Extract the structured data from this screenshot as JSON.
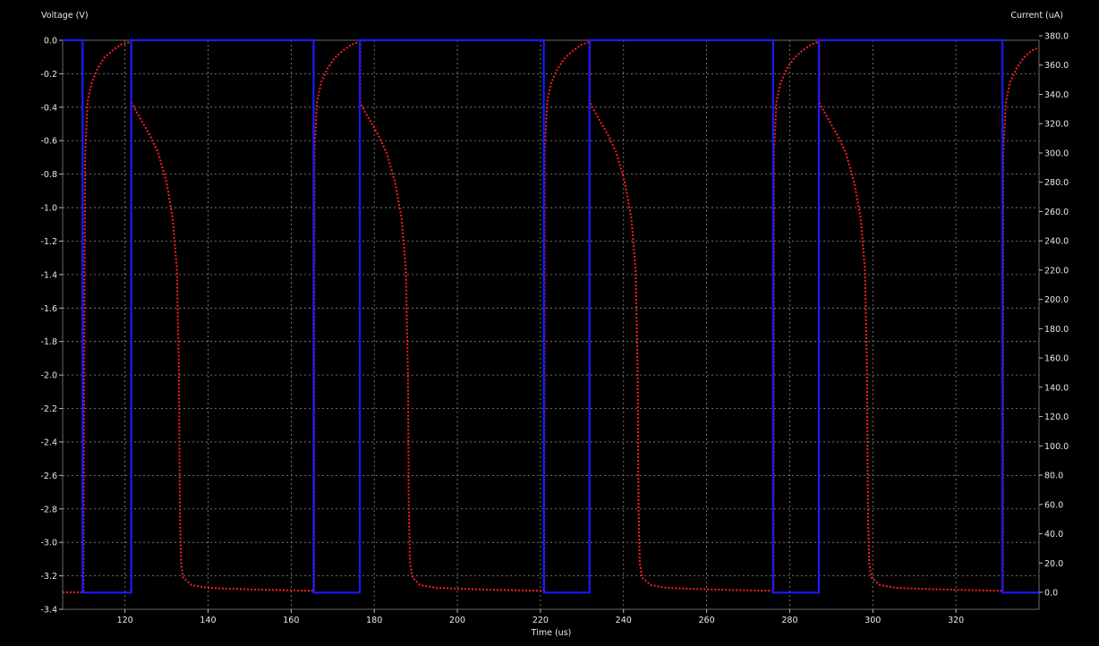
{
  "chart_data": {
    "type": "line",
    "x_axis": {
      "label": "Time (us)",
      "range": [
        105,
        340
      ],
      "ticks": [
        120,
        140,
        160,
        180,
        200,
        220,
        240,
        260,
        280,
        300,
        320
      ],
      "tick_labels": [
        "120",
        "140",
        "160",
        "180",
        "200",
        "220",
        "240",
        "260",
        "280",
        "300",
        "320"
      ]
    },
    "y_left_axis": {
      "label": "Voltage (V)",
      "range": [
        -3.4,
        0.0
      ],
      "ticks": [
        0.0,
        -0.2,
        -0.4,
        -0.6,
        -0.8,
        -1.0,
        -1.2,
        -1.4,
        -1.6,
        -1.8,
        -2.0,
        -2.2,
        -2.4,
        -2.6,
        -2.8,
        -3.0,
        -3.2,
        -3.4
      ],
      "tick_labels": [
        "0.0",
        "-0.2",
        "-0.4",
        "-0.6",
        "-0.8",
        "-1.0",
        "-1.2",
        "-1.4",
        "-1.6",
        "-1.8",
        "-2.0",
        "-2.2",
        "-2.4",
        "-2.6",
        "-2.8",
        "-3.0",
        "-3.2",
        "-3.4"
      ]
    },
    "y_right_axis": {
      "label": "Current (uA)",
      "range": [
        -10,
        380
      ],
      "ticks": [
        380,
        360,
        340,
        320,
        300,
        280,
        260,
        240,
        220,
        200,
        180,
        160,
        140,
        120,
        100,
        80,
        60,
        40,
        20,
        0
      ],
      "tick_labels": [
        "380.0",
        "360.0",
        "340.0",
        "320.0",
        "300.0",
        "280.0",
        "260.0",
        "240.0",
        "220.0",
        "200.0",
        "180.0",
        "160.0",
        "140.0",
        "120.0",
        "100.0",
        "80.0",
        "60.0",
        "40.0",
        "20.0",
        "0.0"
      ]
    },
    "grid": true,
    "series": [
      {
        "name": "Voltage",
        "axis": "left",
        "style": "solid",
        "color": "#1a1aff",
        "points": [
          [
            105,
            0
          ],
          [
            109.8,
            0
          ],
          [
            109.8,
            -3.3
          ],
          [
            121.5,
            -3.3
          ],
          [
            121.5,
            0
          ],
          [
            165.4,
            0
          ],
          [
            165.4,
            -3.3
          ],
          [
            176.5,
            -3.3
          ],
          [
            176.5,
            0
          ],
          [
            220.8,
            0
          ],
          [
            220.8,
            -3.3
          ],
          [
            231.8,
            -3.3
          ],
          [
            231.8,
            0
          ],
          [
            276,
            0
          ],
          [
            276,
            -3.3
          ],
          [
            287,
            -3.3
          ],
          [
            287,
            0
          ],
          [
            331.2,
            0
          ],
          [
            331.2,
            -3.3
          ],
          [
            340,
            -3.3
          ]
        ]
      },
      {
        "name": "Current",
        "axis": "right",
        "style": "dotted",
        "color": "#ff2020",
        "points": [
          [
            105,
            0
          ],
          [
            110,
            0
          ],
          [
            110.4,
            300
          ],
          [
            111,
            335
          ],
          [
            112,
            348
          ],
          [
            113.5,
            358
          ],
          [
            115,
            365
          ],
          [
            117,
            370
          ],
          [
            119,
            374
          ],
          [
            121.5,
            376
          ],
          [
            121.5,
            335
          ],
          [
            122,
            332
          ],
          [
            124,
            322
          ],
          [
            126,
            312
          ],
          [
            128,
            300
          ],
          [
            130,
            280
          ],
          [
            131.5,
            255
          ],
          [
            132.5,
            220
          ],
          [
            133,
            150
          ],
          [
            133.2,
            60
          ],
          [
            133.5,
            20
          ],
          [
            134,
            10
          ],
          [
            136,
            5
          ],
          [
            140,
            3
          ],
          [
            150,
            2
          ],
          [
            165.5,
            1
          ],
          [
            165.6,
            300
          ],
          [
            166.2,
            335
          ],
          [
            167.2,
            348
          ],
          [
            168.8,
            358
          ],
          [
            170.5,
            365
          ],
          [
            172.5,
            370
          ],
          [
            174.5,
            374
          ],
          [
            176.6,
            376
          ],
          [
            176.6,
            335
          ],
          [
            177,
            332
          ],
          [
            179,
            322
          ],
          [
            181,
            312
          ],
          [
            183,
            300
          ],
          [
            185,
            280
          ],
          [
            186.6,
            255
          ],
          [
            187.6,
            220
          ],
          [
            188.1,
            150
          ],
          [
            188.3,
            60
          ],
          [
            188.6,
            20
          ],
          [
            189.2,
            10
          ],
          [
            191,
            5
          ],
          [
            195,
            3
          ],
          [
            205,
            2
          ],
          [
            220.9,
            1
          ],
          [
            221,
            300
          ],
          [
            221.6,
            335
          ],
          [
            222.6,
            348
          ],
          [
            224.2,
            358
          ],
          [
            225.9,
            365
          ],
          [
            227.9,
            370
          ],
          [
            229.9,
            374
          ],
          [
            231.9,
            376
          ],
          [
            231.9,
            335
          ],
          [
            232.3,
            332
          ],
          [
            234.3,
            322
          ],
          [
            236.3,
            312
          ],
          [
            238.3,
            300
          ],
          [
            240.3,
            280
          ],
          [
            241.9,
            255
          ],
          [
            242.9,
            220
          ],
          [
            243.4,
            150
          ],
          [
            243.6,
            60
          ],
          [
            243.9,
            20
          ],
          [
            244.5,
            10
          ],
          [
            246.5,
            5
          ],
          [
            250.5,
            3
          ],
          [
            260.5,
            2
          ],
          [
            276.1,
            1
          ],
          [
            276.2,
            300
          ],
          [
            276.8,
            335
          ],
          [
            277.8,
            348
          ],
          [
            279.4,
            358
          ],
          [
            281.1,
            365
          ],
          [
            283.1,
            370
          ],
          [
            285.1,
            374
          ],
          [
            287.1,
            376
          ],
          [
            287.1,
            335
          ],
          [
            287.5,
            332
          ],
          [
            289.5,
            322
          ],
          [
            291.5,
            312
          ],
          [
            293.5,
            300
          ],
          [
            295.5,
            280
          ],
          [
            297.1,
            255
          ],
          [
            298.1,
            220
          ],
          [
            298.6,
            150
          ],
          [
            298.8,
            60
          ],
          [
            299.1,
            20
          ],
          [
            299.7,
            10
          ],
          [
            301.7,
            5
          ],
          [
            305.7,
            3
          ],
          [
            315.7,
            2
          ],
          [
            331.3,
            1
          ],
          [
            331.4,
            300
          ],
          [
            332,
            335
          ],
          [
            333,
            348
          ],
          [
            334.6,
            358
          ],
          [
            336.3,
            365
          ],
          [
            338.3,
            370
          ],
          [
            340,
            372
          ]
        ]
      }
    ]
  }
}
